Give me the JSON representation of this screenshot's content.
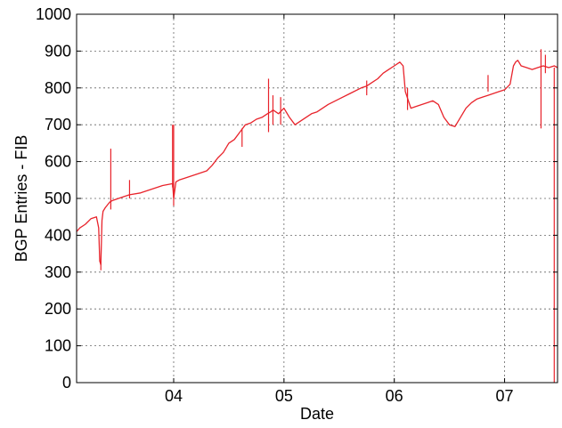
{
  "chart_data": {
    "type": "line",
    "xlabel": "Date",
    "ylabel": "BGP Entries - FIB",
    "xlim": [
      3.12,
      7.48
    ],
    "ylim": [
      0,
      1000
    ],
    "x_ticks": [
      {
        "value": 4,
        "label": "04"
      },
      {
        "value": 5,
        "label": "05"
      },
      {
        "value": 6,
        "label": "06"
      },
      {
        "value": 7,
        "label": "07"
      }
    ],
    "y_ticks": [
      0,
      100,
      200,
      300,
      400,
      500,
      600,
      700,
      800,
      900,
      1000
    ],
    "grid": true,
    "line_color": "#e8232b",
    "series": [
      {
        "x": [
          3.12,
          3.15,
          3.2,
          3.25,
          3.3,
          3.32,
          3.33,
          3.34,
          3.35,
          3.36,
          3.38,
          3.42,
          3.45,
          3.5,
          3.55,
          3.6,
          3.7,
          3.8,
          3.9,
          3.99,
          4.0,
          4.02,
          4.05,
          4.1,
          4.2,
          4.3,
          4.35,
          4.4,
          4.45,
          4.5,
          4.55,
          4.6,
          4.65,
          4.7,
          4.75,
          4.8,
          4.85,
          4.88,
          4.9,
          4.95,
          5.0,
          5.05,
          5.1,
          5.15,
          5.2,
          5.25,
          5.3,
          5.35,
          5.4,
          5.5,
          5.6,
          5.7,
          5.75,
          5.8,
          5.85,
          5.9,
          5.95,
          6.0,
          6.05,
          6.08,
          6.1,
          6.15,
          6.2,
          6.3,
          6.35,
          6.4,
          6.45,
          6.5,
          6.55,
          6.6,
          6.65,
          6.7,
          6.75,
          6.8,
          6.85,
          6.9,
          6.95,
          7.0,
          7.05,
          7.08,
          7.1,
          7.12,
          7.15,
          7.2,
          7.25,
          7.3,
          7.35,
          7.4,
          7.45,
          7.48
        ],
        "y": [
          410,
          420,
          430,
          445,
          450,
          420,
          330,
          320,
          440,
          465,
          475,
          490,
          495,
          500,
          505,
          510,
          515,
          525,
          535,
          540,
          500,
          545,
          550,
          555,
          565,
          575,
          590,
          610,
          625,
          650,
          660,
          680,
          700,
          705,
          715,
          720,
          730,
          735,
          740,
          730,
          745,
          720,
          700,
          710,
          720,
          730,
          735,
          745,
          755,
          770,
          785,
          800,
          805,
          815,
          825,
          840,
          850,
          860,
          870,
          860,
          790,
          745,
          750,
          760,
          765,
          755,
          720,
          700,
          695,
          720,
          745,
          760,
          770,
          775,
          780,
          785,
          790,
          795,
          810,
          860,
          870,
          875,
          860,
          855,
          850,
          855,
          860,
          855,
          860,
          855
        ]
      }
    ],
    "spikes": [
      {
        "x": 3.34,
        "low": 305,
        "high": 330
      },
      {
        "x": 3.43,
        "low": 470,
        "high": 635
      },
      {
        "x": 3.6,
        "low": 500,
        "high": 550
      },
      {
        "x": 3.99,
        "low": 530,
        "high": 700
      },
      {
        "x": 4.0,
        "low": 480,
        "high": 700
      },
      {
        "x": 4.62,
        "low": 640,
        "high": 690
      },
      {
        "x": 4.86,
        "low": 680,
        "high": 825
      },
      {
        "x": 4.9,
        "low": 700,
        "high": 780
      },
      {
        "x": 4.97,
        "low": 700,
        "high": 775
      },
      {
        "x": 5.75,
        "low": 780,
        "high": 820
      },
      {
        "x": 6.12,
        "low": 740,
        "high": 800
      },
      {
        "x": 6.85,
        "low": 790,
        "high": 835
      },
      {
        "x": 7.33,
        "low": 690,
        "high": 905
      },
      {
        "x": 7.37,
        "low": 840,
        "high": 890
      },
      {
        "x": 7.45,
        "low": 0,
        "high": 855
      }
    ]
  }
}
